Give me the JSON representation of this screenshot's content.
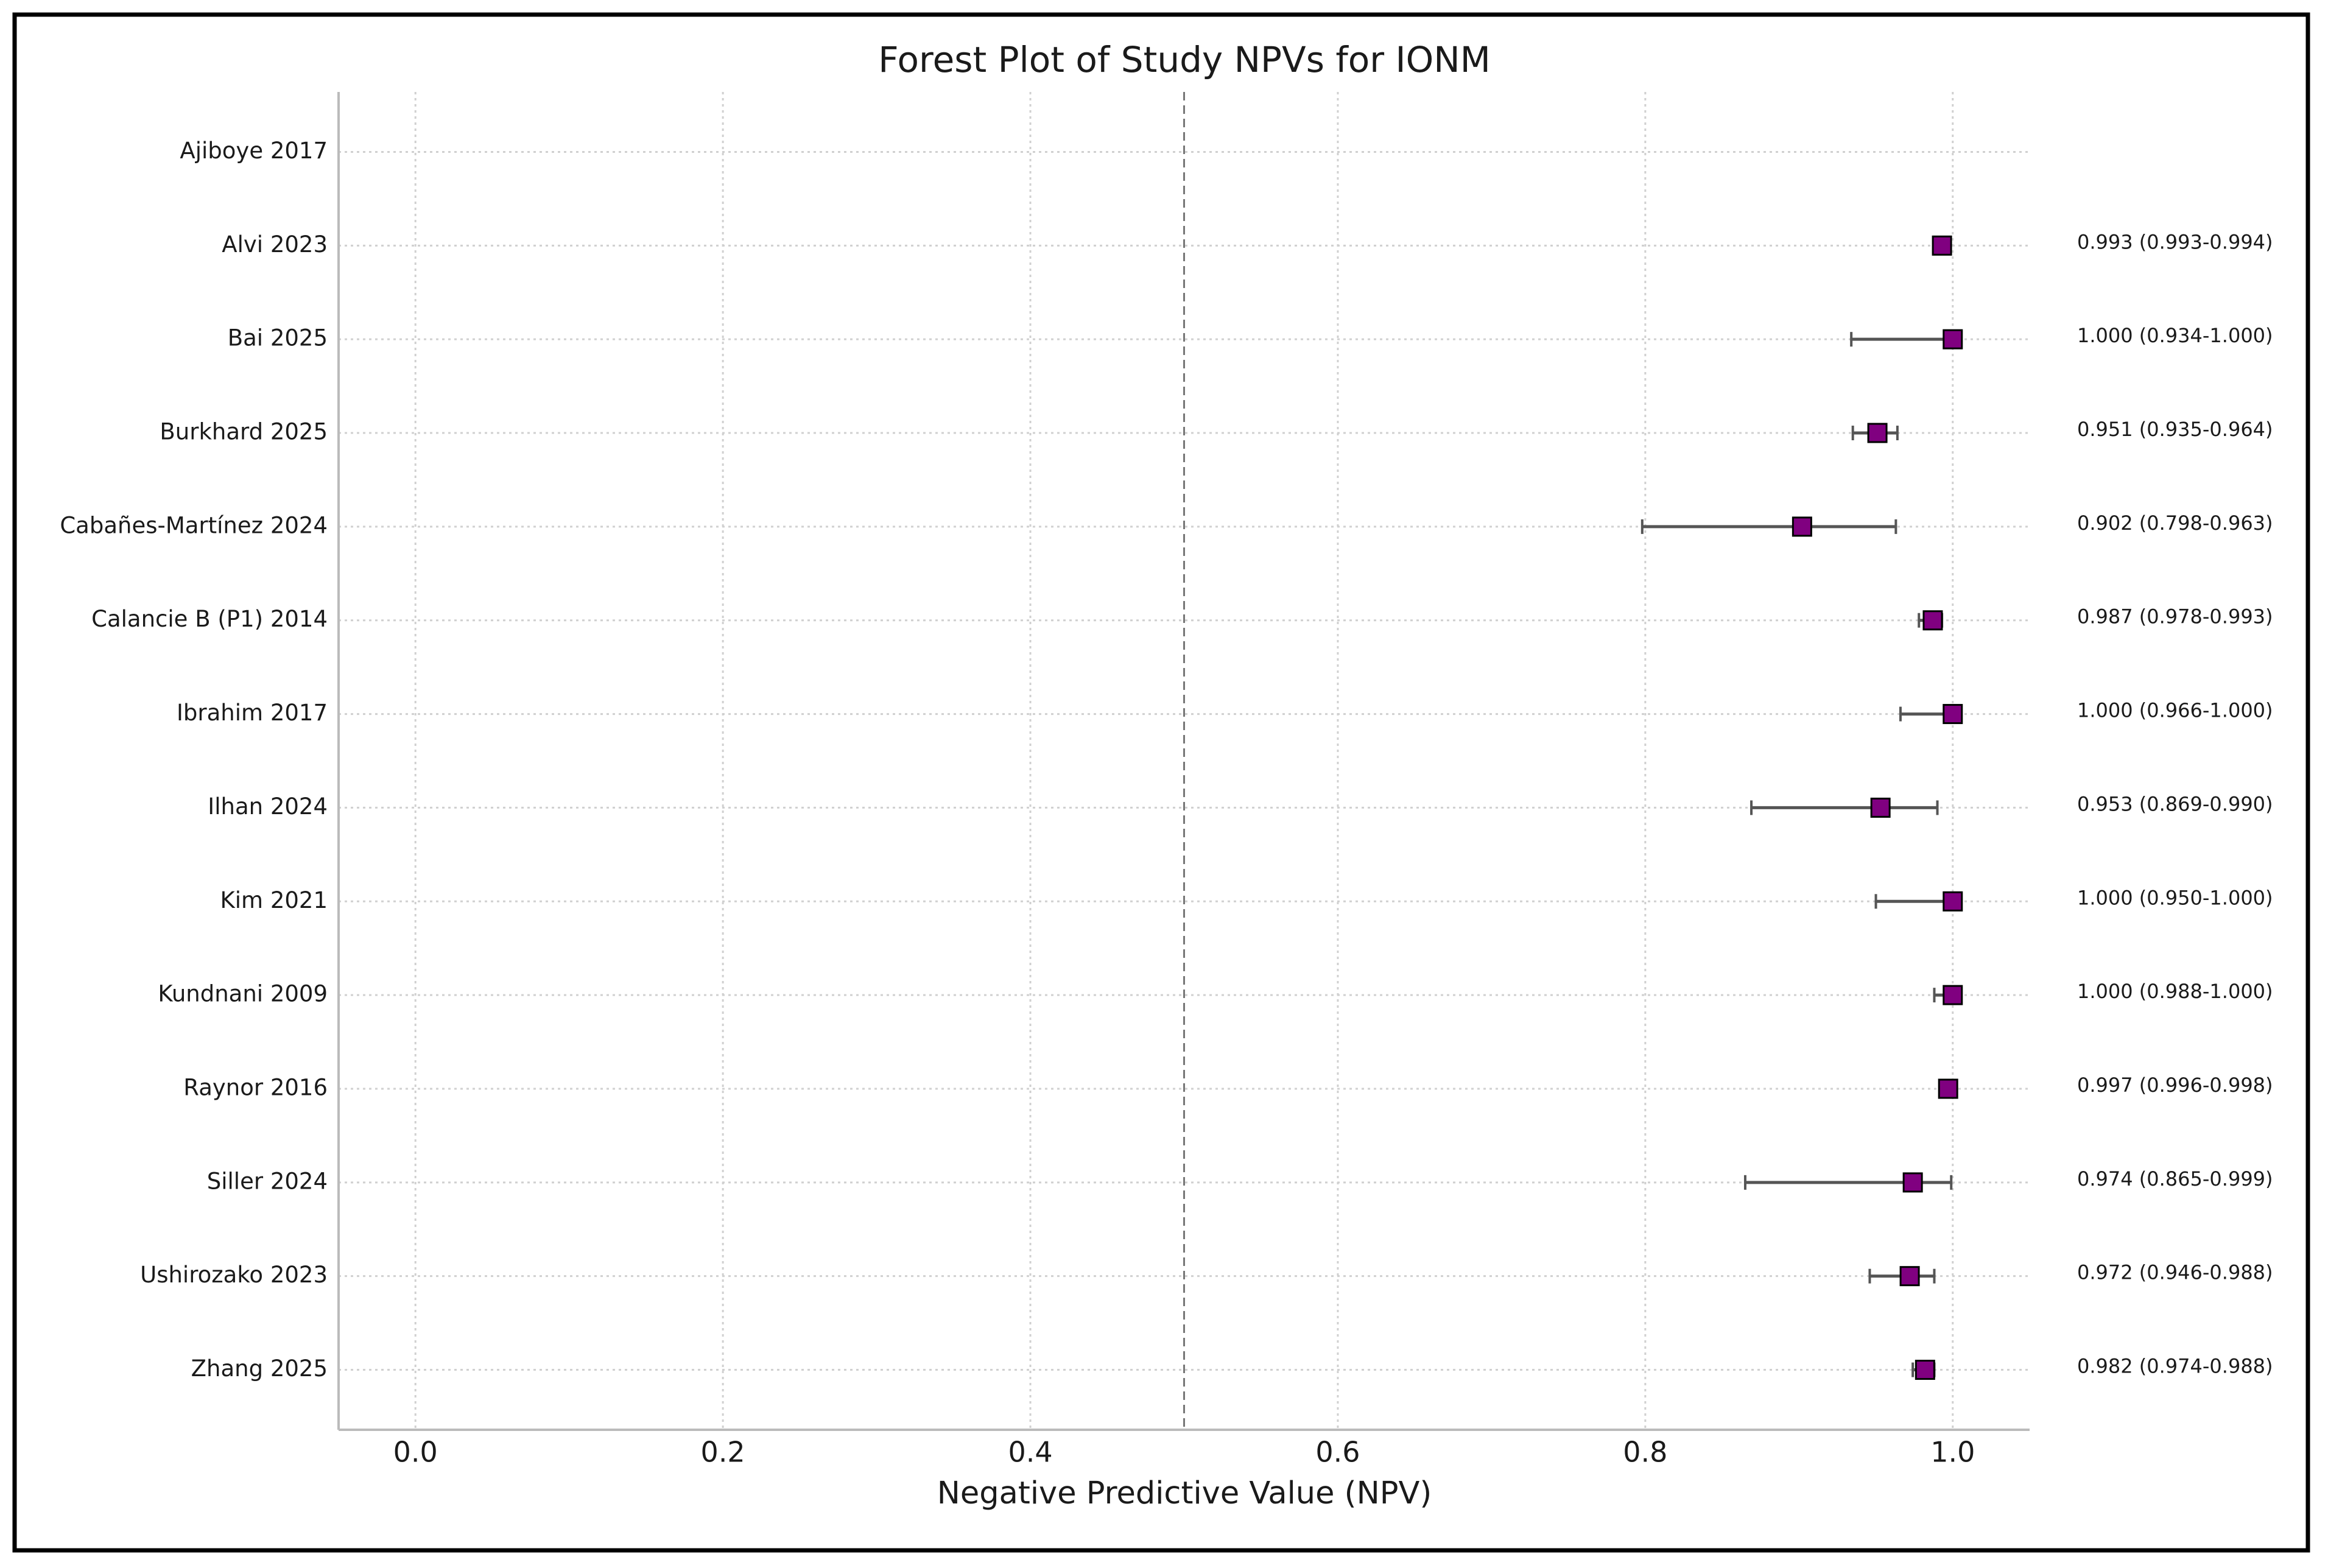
{
  "chart_data": {
    "type": "forest",
    "title": "Forest Plot of Study NPVs for IONM",
    "x_label": "Negative Predictive Value (NPV)",
    "categories": [
      "Ajiboye 2017",
      "Alvi 2023",
      "Bai 2025",
      "Burkhard 2025",
      "Cabañes-Martínez 2024",
      "Calancie B (P1) 2014",
      "Ibrahim 2017",
      "Ilhan 2024",
      "Kim 2021",
      "Kundnani 2009",
      "Raynor 2016",
      "Siller 2024",
      "Ushirozako 2023",
      "Zhang 2025"
    ],
    "values": [
      null,
      0.993,
      1.0,
      0.951,
      0.902,
      0.987,
      1.0,
      0.953,
      1.0,
      1.0,
      0.997,
      0.974,
      0.972,
      0.982
    ],
    "lower": [
      null,
      0.993,
      0.934,
      0.935,
      0.798,
      0.978,
      0.966,
      0.869,
      0.95,
      0.988,
      0.996,
      0.865,
      0.946,
      0.974
    ],
    "upper": [
      null,
      0.994,
      1.0,
      0.964,
      0.963,
      0.993,
      1.0,
      0.99,
      1.0,
      1.0,
      0.998,
      0.999,
      0.988,
      0.988
    ],
    "value_labels": [
      null,
      "0.993 (0.993-0.994)",
      "1.000 (0.934-1.000)",
      "0.951 (0.935-0.964)",
      "0.902 (0.798-0.963)",
      "0.987 (0.978-0.993)",
      "1.000 (0.966-1.000)",
      "0.953 (0.869-0.990)",
      "1.000 (0.950-1.000)",
      "1.000 (0.988-1.000)",
      "0.997 (0.996-0.998)",
      "0.974 (0.865-0.999)",
      "0.972 (0.946-0.988)",
      "0.982 (0.974-0.988)"
    ],
    "ref_line": 0.5,
    "color": "#800080",
    "xlim": [
      -0.05,
      1.05
    ],
    "xticks": [
      {
        "value": 0,
        "label": "0.0"
      },
      0.2,
      0.4,
      0.6,
      0.8,
      {
        "value": 1,
        "label": "1.0"
      }
    ],
    "grid": true
  }
}
